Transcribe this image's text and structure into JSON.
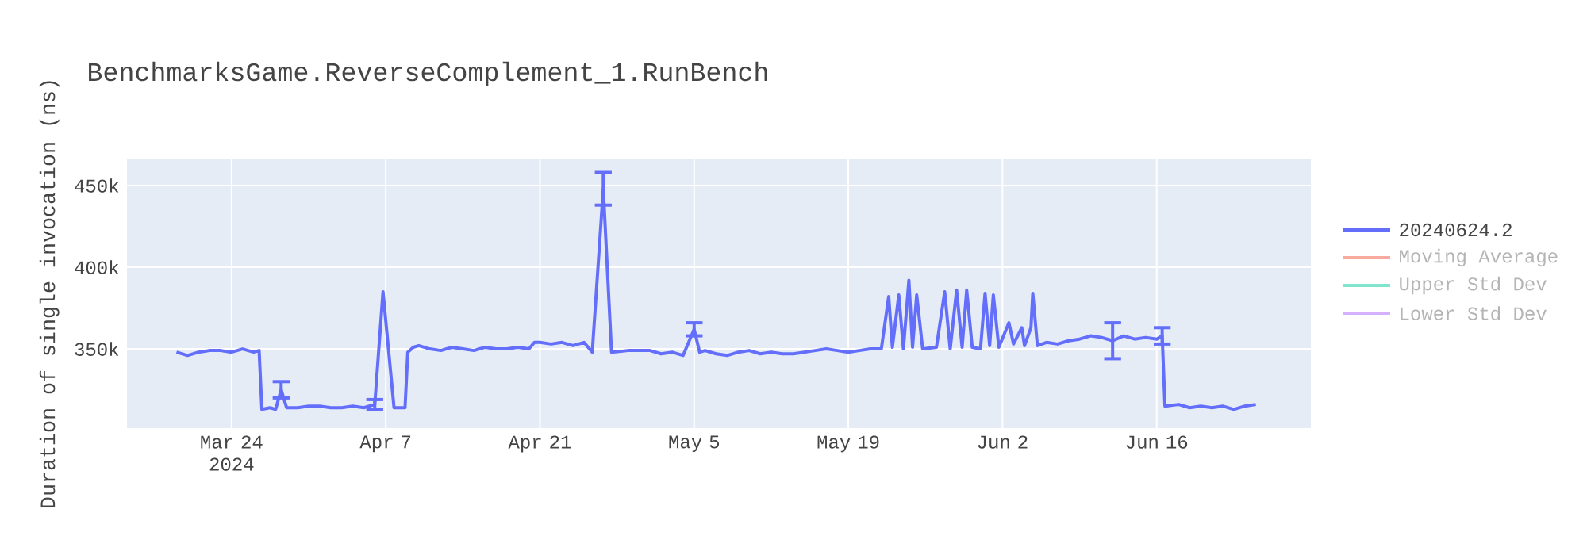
{
  "chart_data": {
    "type": "line",
    "title": "BenchmarksGame.ReverseComplement_1.RunBench",
    "ylabel": "Duration of single invocation (ns)",
    "xlim": [
      "2024-03-14T12:00",
      "2024-06-30"
    ],
    "xticks": [
      {
        "value": "2024-03-24",
        "label": "Mar 24 2024"
      },
      {
        "value": "2024-04-07",
        "label": "Apr 7"
      },
      {
        "value": "2024-04-21",
        "label": "Apr 21"
      },
      {
        "value": "2024-05-05",
        "label": "May 5"
      },
      {
        "value": "2024-05-19",
        "label": "May 19"
      },
      {
        "value": "2024-06-02",
        "label": "Jun 2"
      },
      {
        "value": "2024-06-16",
        "label": "Jun 16"
      }
    ],
    "ylim": [
      301500,
      466500
    ],
    "yticks": [
      {
        "value": 350000,
        "label": "350k"
      },
      {
        "value": 400000,
        "label": "400k"
      },
      {
        "value": 450000,
        "label": "450k"
      }
    ],
    "grid": true,
    "legend": "right",
    "marker": "none",
    "line_style": "solid",
    "series": [
      {
        "name": "20240624.2",
        "color": "#636efa",
        "x": [
          "2024-03-19",
          "2024-03-20",
          "2024-03-21",
          "2024-03-22",
          "2024-03-23",
          "2024-03-24",
          "2024-03-25",
          "2024-03-26",
          "2024-03-26T12:00",
          "2024-03-26T18:00",
          "2024-03-27T12:00",
          "2024-03-28",
          "2024-03-28T12:00",
          "2024-03-29",
          "2024-03-30",
          "2024-03-31",
          "2024-04-01",
          "2024-04-02",
          "2024-04-03",
          "2024-04-04",
          "2024-04-05",
          "2024-04-06",
          "2024-04-06T18:00",
          "2024-04-07T18:00",
          "2024-04-08T18:00",
          "2024-04-09",
          "2024-04-09T12:00",
          "2024-04-10",
          "2024-04-11",
          "2024-04-12",
          "2024-04-13",
          "2024-04-14",
          "2024-04-15",
          "2024-04-16",
          "2024-04-17",
          "2024-04-18",
          "2024-04-19",
          "2024-04-20",
          "2024-04-20T12:00",
          "2024-04-21",
          "2024-04-22",
          "2024-04-23",
          "2024-04-24",
          "2024-04-25",
          "2024-04-25T18:00",
          "2024-04-26T18:00",
          "2024-04-27T12:00",
          "2024-04-29",
          "2024-05-01",
          "2024-05-02",
          "2024-05-03",
          "2024-05-04",
          "2024-05-05",
          "2024-05-05T12:00",
          "2024-05-06",
          "2024-05-07",
          "2024-05-08",
          "2024-05-09",
          "2024-05-10",
          "2024-05-11",
          "2024-05-12",
          "2024-05-13",
          "2024-05-14",
          "2024-05-15",
          "2024-05-16",
          "2024-05-17",
          "2024-05-18",
          "2024-05-19",
          "2024-05-20",
          "2024-05-21",
          "2024-05-22",
          "2024-05-22T16:00",
          "2024-05-23",
          "2024-05-23T14:00",
          "2024-05-24",
          "2024-05-24T12:00",
          "2024-05-24T20:00",
          "2024-05-25T05:00",
          "2024-05-25T18:00",
          "2024-05-27",
          "2024-05-27T18:00",
          "2024-05-28T06:00",
          "2024-05-28T20:00",
          "2024-05-29T08:00",
          "2024-05-29T18:00",
          "2024-05-30T06:00",
          "2024-05-31",
          "2024-05-31T10:00",
          "2024-05-31T20:00",
          "2024-06-01T04:00",
          "2024-06-01T16:00",
          "2024-06-02T14:00",
          "2024-06-03",
          "2024-06-03T18:00",
          "2024-06-04",
          "2024-06-04T14:00",
          "2024-06-04T18:00",
          "2024-06-05T04:00",
          "2024-06-06",
          "2024-06-07",
          "2024-06-08",
          "2024-06-09",
          "2024-06-10",
          "2024-06-11",
          "2024-06-12",
          "2024-06-13",
          "2024-06-14",
          "2024-06-15",
          "2024-06-16",
          "2024-06-16T12:00",
          "2024-06-16T18:00",
          "2024-06-18",
          "2024-06-19",
          "2024-06-20",
          "2024-06-21",
          "2024-06-22",
          "2024-06-23",
          "2024-06-24",
          "2024-06-25"
        ],
        "values": [
          348000,
          346000,
          348000,
          349000,
          349000,
          348000,
          350000,
          348000,
          349000,
          313000,
          314000,
          313000,
          325000,
          314000,
          314000,
          315000,
          315000,
          314000,
          314000,
          315000,
          314000,
          316000,
          385000,
          314000,
          314000,
          348000,
          351000,
          352000,
          350000,
          349000,
          351000,
          350000,
          349000,
          351000,
          350000,
          350000,
          351000,
          350000,
          354000,
          354000,
          353000,
          354000,
          352000,
          354000,
          348000,
          448000,
          348000,
          349000,
          349000,
          347000,
          348000,
          346000,
          362000,
          348000,
          349000,
          347000,
          346000,
          348000,
          349000,
          347000,
          348000,
          347000,
          347000,
          348000,
          349000,
          350000,
          349000,
          348000,
          349000,
          350000,
          350000,
          382000,
          351000,
          383000,
          350000,
          392000,
          351000,
          383000,
          350000,
          351000,
          385000,
          350000,
          386000,
          351000,
          386000,
          351000,
          350000,
          384000,
          352000,
          383000,
          351000,
          366000,
          353000,
          363000,
          352000,
          363000,
          384000,
          352000,
          354000,
          353000,
          355000,
          356000,
          358000,
          357000,
          355000,
          358000,
          356000,
          357000,
          356000,
          358000,
          315000,
          316000,
          314000,
          315000,
          314000,
          315000,
          313000,
          315000,
          316000
        ],
        "errors": [
          null,
          null,
          null,
          null,
          null,
          null,
          null,
          null,
          null,
          null,
          null,
          null,
          5000,
          null,
          null,
          null,
          null,
          null,
          null,
          null,
          null,
          3000,
          null,
          null,
          null,
          null,
          null,
          null,
          null,
          null,
          null,
          null,
          null,
          null,
          null,
          null,
          null,
          null,
          null,
          null,
          null,
          null,
          null,
          null,
          null,
          10000,
          null,
          null,
          null,
          null,
          null,
          null,
          4000,
          null,
          null,
          null,
          null,
          null,
          null,
          null,
          null,
          null,
          null,
          null,
          null,
          null,
          null,
          null,
          null,
          null,
          null,
          null,
          null,
          null,
          null,
          null,
          null,
          null,
          null,
          null,
          null,
          null,
          null,
          null,
          null,
          null,
          null,
          null,
          null,
          null,
          null,
          null,
          null,
          null,
          null,
          null,
          null,
          null,
          null,
          null,
          null,
          null,
          null,
          null,
          11000,
          null,
          null,
          null,
          null,
          5000,
          null,
          null,
          null,
          null,
          null,
          null,
          null,
          null,
          null
        ]
      },
      {
        "name": "Moving Average",
        "color": "#f7aa9d"
      },
      {
        "name": "Upper Std Dev",
        "color": "#80e5cb"
      },
      {
        "name": "Lower Std Dev",
        "color": "#d5b1fc"
      }
    ]
  }
}
